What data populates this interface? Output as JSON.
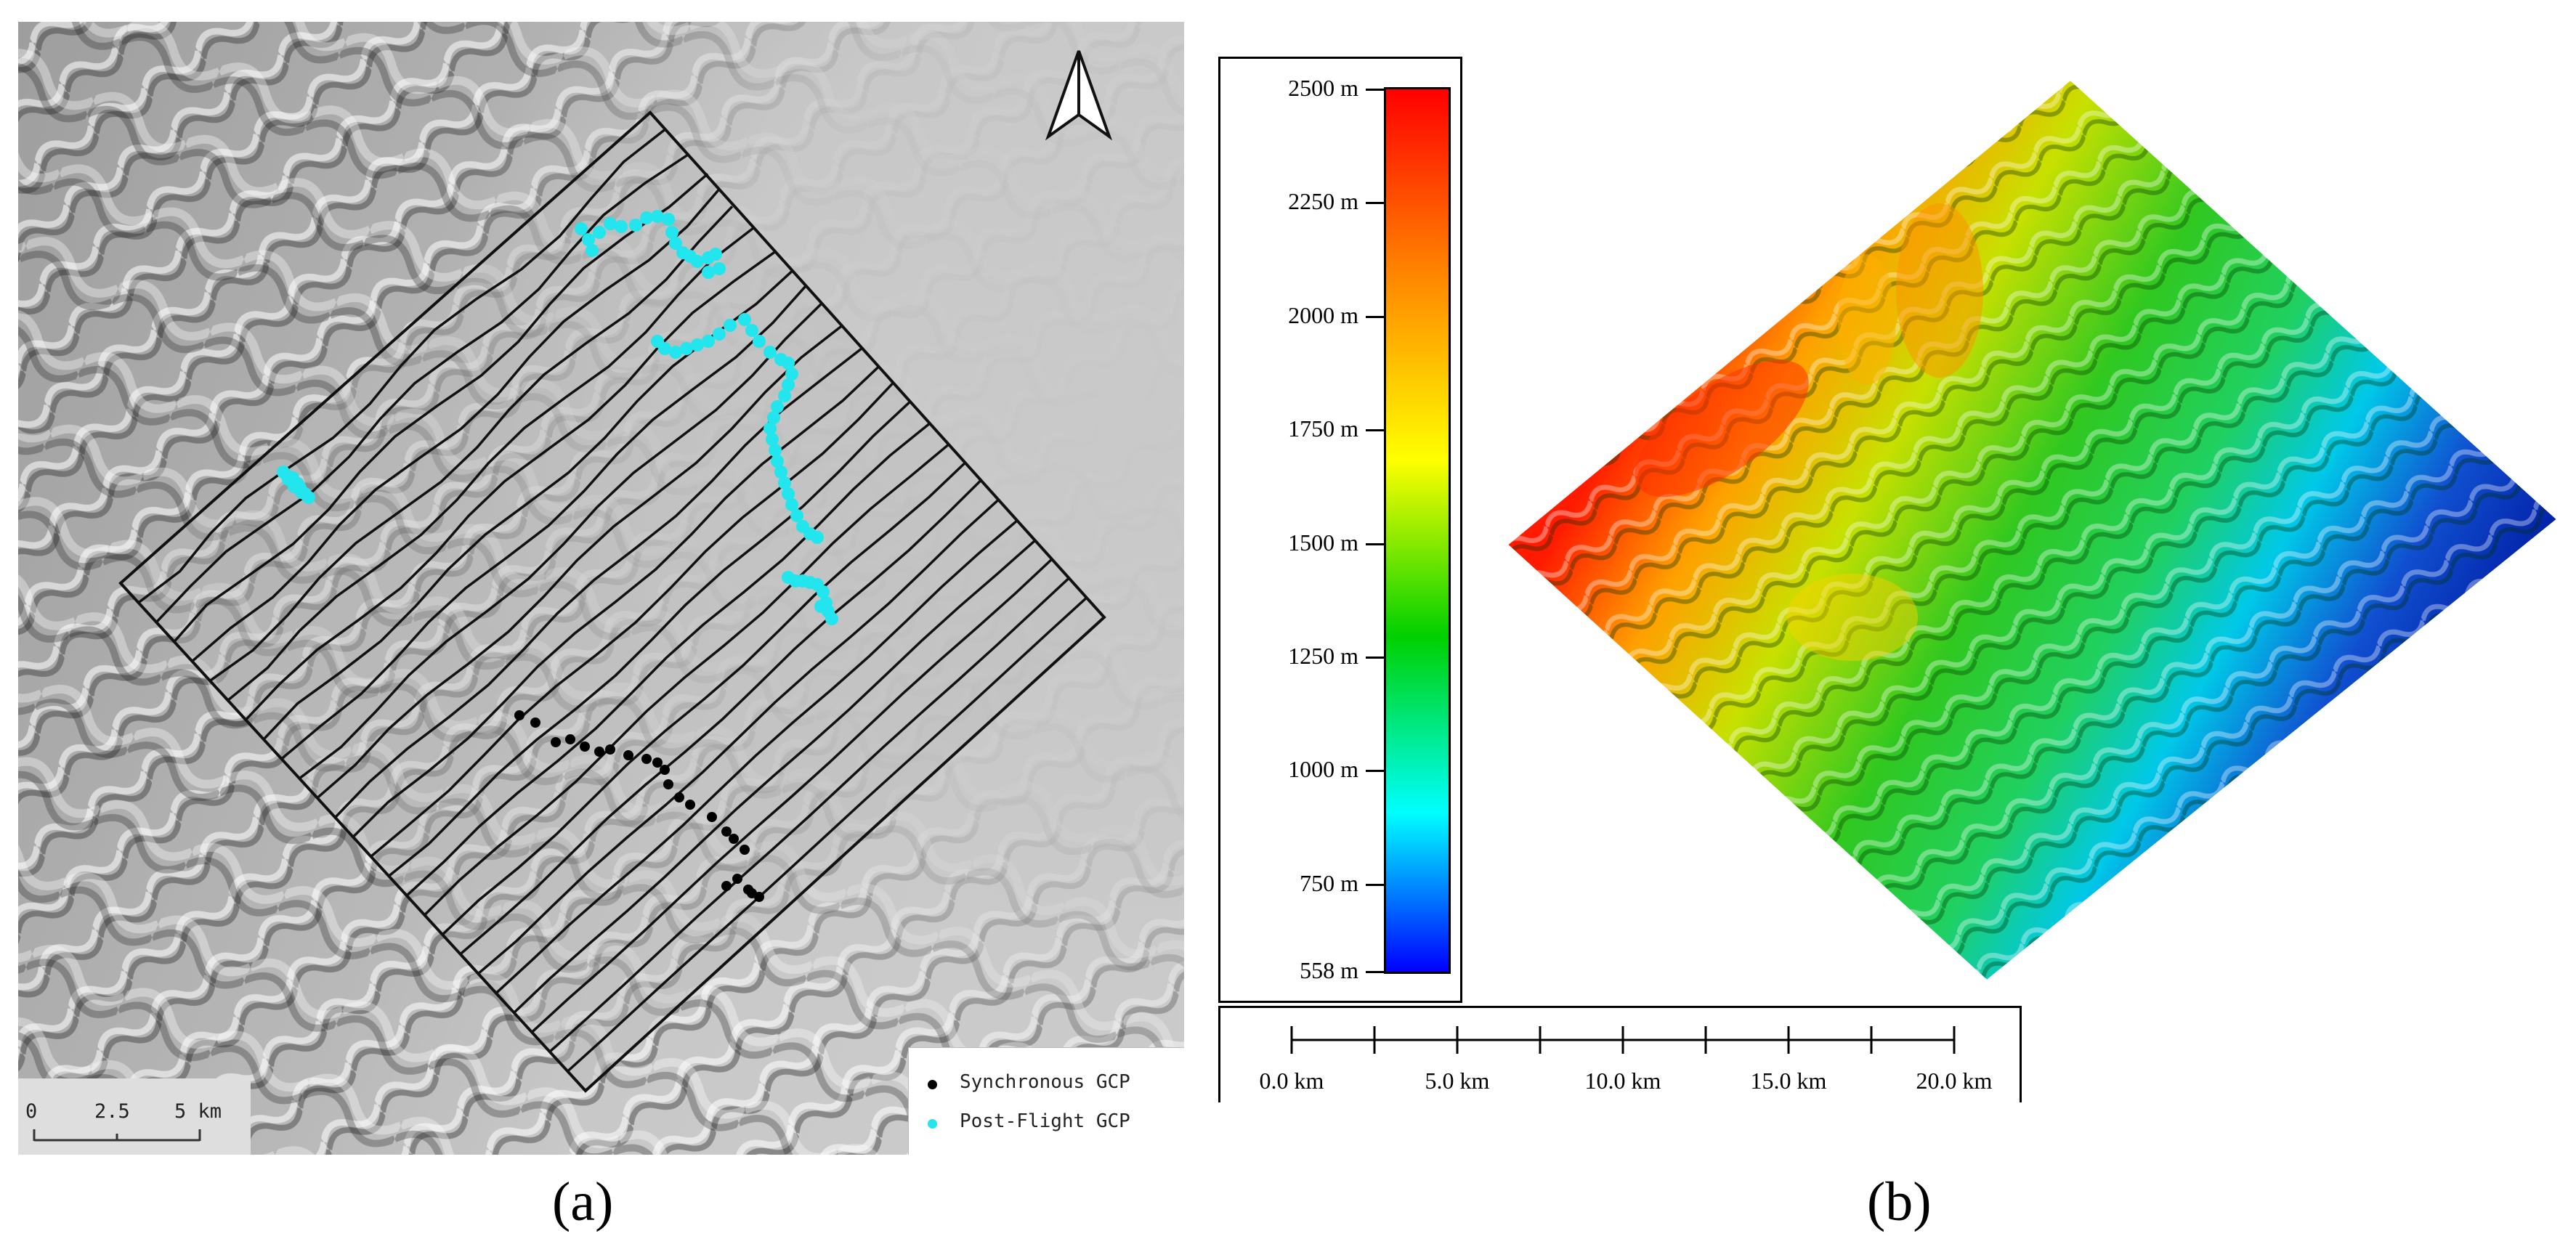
{
  "panel_a": {
    "legend": {
      "items": [
        {
          "label": "Synchronous GCP",
          "color": "#000000"
        },
        {
          "label": "Post-Flight GCP",
          "color": "#22e5ee"
        }
      ]
    },
    "scale_bar": {
      "labels": [
        "0",
        "2.5",
        "5 km"
      ]
    },
    "north_arrow": "north-arrow-icon",
    "synchronous_gcp_count": 23,
    "post_flight_gcp_count": 70
  },
  "panel_b": {
    "colorbar": {
      "labels": [
        "2500 m",
        "2250 m",
        "2000 m",
        "1750 m",
        "1500 m",
        "1250 m",
        "1000 m",
        "750 m",
        "558 m"
      ],
      "colors": [
        "#ff0000",
        "#ff8000",
        "#ffff00",
        "#00d000",
        "#00ffff",
        "#0000ff"
      ],
      "min": 558,
      "max": 2500,
      "unit": "m"
    },
    "scale_bar": {
      "labels": [
        "0.0 km",
        "5.0 km",
        "10.0 km",
        "15.0 km",
        "20.0 km"
      ]
    }
  },
  "captions": {
    "a": "(a)",
    "b": "(b)"
  }
}
